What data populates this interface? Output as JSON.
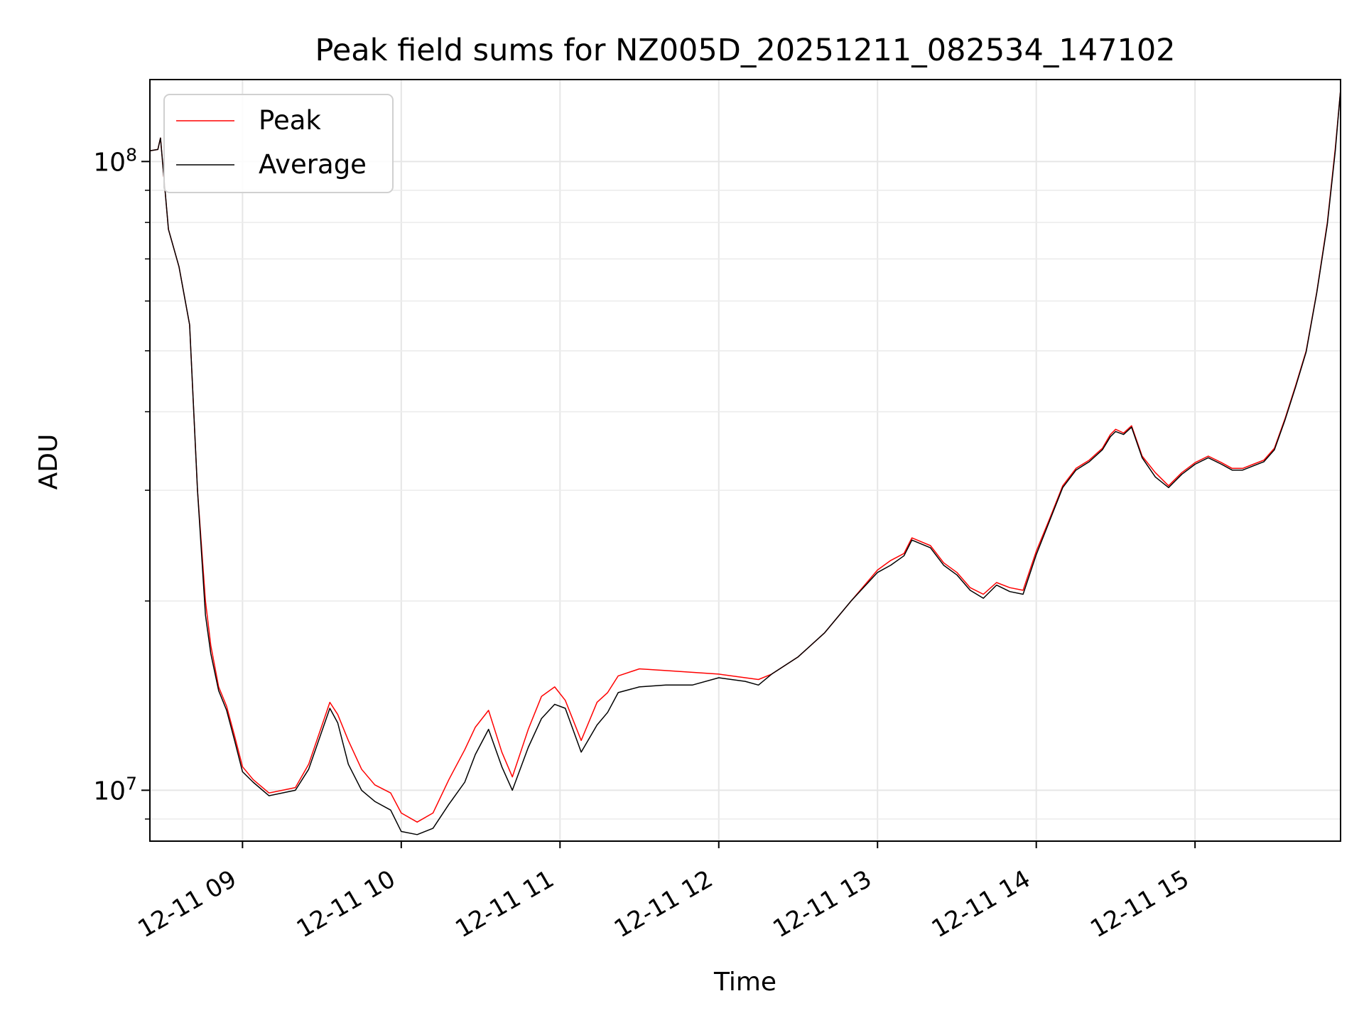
{
  "chart_data": {
    "type": "line",
    "title": "Peak field sums for NZ005D_20251211_082534_147102",
    "xlabel": "Time",
    "ylabel": "ADU",
    "y_scale": "log",
    "ylim": [
      8300000,
      135000000
    ],
    "xlim": [
      "2025-12-11 08:25",
      "2025-12-11 15:55"
    ],
    "x_ticks": [
      "12-11 09",
      "12-11 10",
      "12-11 11",
      "12-11 12",
      "12-11 13",
      "12-11 14",
      "12-11 15"
    ],
    "y_ticks": [
      {
        "value": 10000000,
        "base": "10",
        "exp": "7"
      },
      {
        "value": 100000000,
        "base": "10",
        "exp": "8"
      }
    ],
    "grid": true,
    "legend_position": "upper-left",
    "colors": {
      "Peak": "#ff0000",
      "Average": "#000000"
    },
    "series": [
      {
        "name": "Peak",
        "x": [
          "2025-12-11 08:25",
          "2025-12-11 08:28",
          "2025-12-11 08:29",
          "2025-12-11 08:32",
          "2025-12-11 08:36",
          "2025-12-11 08:40",
          "2025-12-11 08:43",
          "2025-12-11 08:46",
          "2025-12-11 08:48",
          "2025-12-11 08:51",
          "2025-12-11 08:54",
          "2025-12-11 08:57",
          "2025-12-11 09:00",
          "2025-12-11 09:04",
          "2025-12-11 09:10",
          "2025-12-11 09:20",
          "2025-12-11 09:25",
          "2025-12-11 09:33",
          "2025-12-11 09:36",
          "2025-12-11 09:40",
          "2025-12-11 09:45",
          "2025-12-11 09:50",
          "2025-12-11 09:56",
          "2025-12-11 10:00",
          "2025-12-11 10:06",
          "2025-12-11 10:12",
          "2025-12-11 10:18",
          "2025-12-11 10:24",
          "2025-12-11 10:28",
          "2025-12-11 10:33",
          "2025-12-11 10:38",
          "2025-12-11 10:42",
          "2025-12-11 10:48",
          "2025-12-11 10:53",
          "2025-12-11 10:58",
          "2025-12-11 11:02",
          "2025-12-11 11:08",
          "2025-12-11 11:14",
          "2025-12-11 11:18",
          "2025-12-11 11:22",
          "2025-12-11 11:30",
          "2025-12-11 11:40",
          "2025-12-11 11:50",
          "2025-12-11 12:00",
          "2025-12-11 12:10",
          "2025-12-11 12:15",
          "2025-12-11 12:20",
          "2025-12-11 12:30",
          "2025-12-11 12:40",
          "2025-12-11 12:50",
          "2025-12-11 13:00",
          "2025-12-11 13:05",
          "2025-12-11 13:10",
          "2025-12-11 13:13",
          "2025-12-11 13:20",
          "2025-12-11 13:25",
          "2025-12-11 13:30",
          "2025-12-11 13:35",
          "2025-12-11 13:40",
          "2025-12-11 13:45",
          "2025-12-11 13:50",
          "2025-12-11 13:55",
          "2025-12-11 14:00",
          "2025-12-11 14:05",
          "2025-12-11 14:10",
          "2025-12-11 14:15",
          "2025-12-11 14:20",
          "2025-12-11 14:25",
          "2025-12-11 14:28",
          "2025-12-11 14:30",
          "2025-12-11 14:33",
          "2025-12-11 14:36",
          "2025-12-11 14:40",
          "2025-12-11 14:45",
          "2025-12-11 14:50",
          "2025-12-11 14:55",
          "2025-12-11 15:00",
          "2025-12-11 15:05",
          "2025-12-11 15:10",
          "2025-12-11 15:14",
          "2025-12-11 15:18",
          "2025-12-11 15:22",
          "2025-12-11 15:26",
          "2025-12-11 15:30",
          "2025-12-11 15:34",
          "2025-12-11 15:38",
          "2025-12-11 15:42",
          "2025-12-11 15:46",
          "2025-12-11 15:50",
          "2025-12-11 15:53",
          "2025-12-11 15:55"
        ],
        "y": [
          104000000,
          104500000,
          109000000,
          78000000,
          68000000,
          55000000,
          30000000,
          20000000,
          17000000,
          14600000,
          13600000,
          12200000,
          10900000,
          10400000,
          9900000,
          10100000,
          11000000,
          13800000,
          13200000,
          12000000,
          10800000,
          10200000,
          9900000,
          9200000,
          8900000,
          9200000,
          10400000,
          11600000,
          12600000,
          13400000,
          11500000,
          10500000,
          12500000,
          14100000,
          14600000,
          13900000,
          12000000,
          13800000,
          14300000,
          15200000,
          15600000,
          15500000,
          15400000,
          15300000,
          15100000,
          15000000,
          15300000,
          16300000,
          17800000,
          20000000,
          22400000,
          23200000,
          23800000,
          25200000,
          24500000,
          23000000,
          22200000,
          21000000,
          20500000,
          21400000,
          21000000,
          20800000,
          24000000,
          27000000,
          30500000,
          32500000,
          33500000,
          35000000,
          36800000,
          37500000,
          37000000,
          38000000,
          34000000,
          32000000,
          30500000,
          32000000,
          33200000,
          34000000,
          33200000,
          32500000,
          32500000,
          33000000,
          33500000,
          35000000,
          39000000,
          44000000,
          50000000,
          62000000,
          80000000,
          105000000,
          130000000
        ]
      },
      {
        "name": "Average",
        "x": [
          "2025-12-11 08:25",
          "2025-12-11 08:28",
          "2025-12-11 08:29",
          "2025-12-11 08:32",
          "2025-12-11 08:36",
          "2025-12-11 08:40",
          "2025-12-11 08:43",
          "2025-12-11 08:46",
          "2025-12-11 08:48",
          "2025-12-11 08:51",
          "2025-12-11 08:54",
          "2025-12-11 08:57",
          "2025-12-11 09:00",
          "2025-12-11 09:04",
          "2025-12-11 09:10",
          "2025-12-11 09:20",
          "2025-12-11 09:25",
          "2025-12-11 09:33",
          "2025-12-11 09:36",
          "2025-12-11 09:40",
          "2025-12-11 09:45",
          "2025-12-11 09:50",
          "2025-12-11 09:56",
          "2025-12-11 10:00",
          "2025-12-11 10:06",
          "2025-12-11 10:12",
          "2025-12-11 10:18",
          "2025-12-11 10:24",
          "2025-12-11 10:28",
          "2025-12-11 10:33",
          "2025-12-11 10:38",
          "2025-12-11 10:42",
          "2025-12-11 10:48",
          "2025-12-11 10:53",
          "2025-12-11 10:58",
          "2025-12-11 11:02",
          "2025-12-11 11:08",
          "2025-12-11 11:14",
          "2025-12-11 11:18",
          "2025-12-11 11:22",
          "2025-12-11 11:30",
          "2025-12-11 11:40",
          "2025-12-11 11:50",
          "2025-12-11 12:00",
          "2025-12-11 12:10",
          "2025-12-11 12:15",
          "2025-12-11 12:20",
          "2025-12-11 12:30",
          "2025-12-11 12:40",
          "2025-12-11 12:50",
          "2025-12-11 13:00",
          "2025-12-11 13:05",
          "2025-12-11 13:10",
          "2025-12-11 13:13",
          "2025-12-11 13:20",
          "2025-12-11 13:25",
          "2025-12-11 13:30",
          "2025-12-11 13:35",
          "2025-12-11 13:40",
          "2025-12-11 13:45",
          "2025-12-11 13:50",
          "2025-12-11 13:55",
          "2025-12-11 14:00",
          "2025-12-11 14:05",
          "2025-12-11 14:10",
          "2025-12-11 14:15",
          "2025-12-11 14:20",
          "2025-12-11 14:25",
          "2025-12-11 14:28",
          "2025-12-11 14:30",
          "2025-12-11 14:33",
          "2025-12-11 14:36",
          "2025-12-11 14:40",
          "2025-12-11 14:45",
          "2025-12-11 14:50",
          "2025-12-11 14:55",
          "2025-12-11 15:00",
          "2025-12-11 15:05",
          "2025-12-11 15:10",
          "2025-12-11 15:14",
          "2025-12-11 15:18",
          "2025-12-11 15:22",
          "2025-12-11 15:26",
          "2025-12-11 15:30",
          "2025-12-11 15:34",
          "2025-12-11 15:38",
          "2025-12-11 15:42",
          "2025-12-11 15:46",
          "2025-12-11 15:50",
          "2025-12-11 15:53",
          "2025-12-11 15:55"
        ],
        "y": [
          104000000,
          104500000,
          109000000,
          78000000,
          68000000,
          55000000,
          30000000,
          19000000,
          16500000,
          14400000,
          13400000,
          12000000,
          10700000,
          10300000,
          9800000,
          10000000,
          10800000,
          13500000,
          12800000,
          11000000,
          10000000,
          9600000,
          9300000,
          8600000,
          8500000,
          8700000,
          9500000,
          10300000,
          11400000,
          12500000,
          10900000,
          10000000,
          11700000,
          13000000,
          13700000,
          13500000,
          11500000,
          12700000,
          13300000,
          14300000,
          14600000,
          14700000,
          14700000,
          15100000,
          14900000,
          14700000,
          15300000,
          16300000,
          17800000,
          20000000,
          22200000,
          22800000,
          23600000,
          25000000,
          24300000,
          22800000,
          22000000,
          20800000,
          20200000,
          21200000,
          20700000,
          20500000,
          23700000,
          26800000,
          30300000,
          32300000,
          33300000,
          34800000,
          36500000,
          37200000,
          36800000,
          37800000,
          33800000,
          31500000,
          30300000,
          31800000,
          33000000,
          33800000,
          33000000,
          32300000,
          32300000,
          32800000,
          33300000,
          34800000,
          38800000,
          43800000,
          49800000,
          61800000,
          79500000,
          104000000,
          130000000
        ]
      }
    ]
  }
}
